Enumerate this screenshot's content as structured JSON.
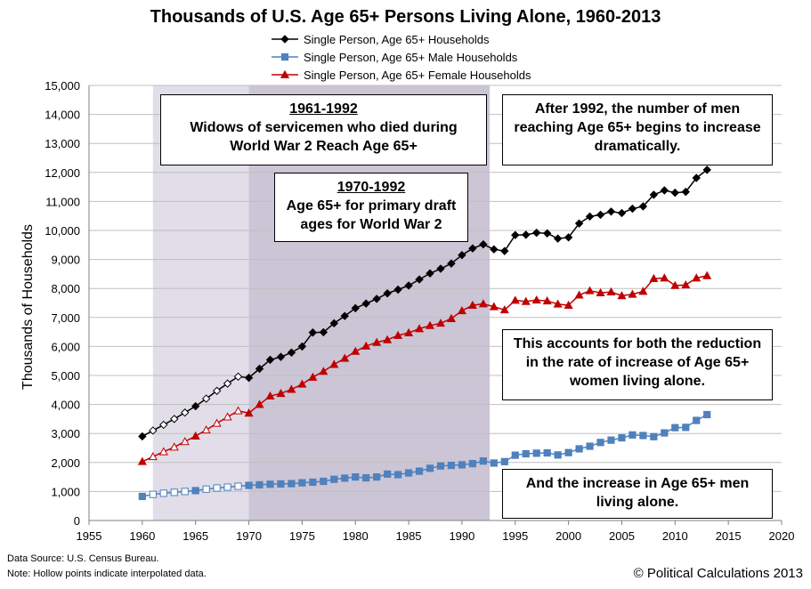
{
  "chart_data": {
    "type": "line",
    "title": "Thousands of U.S. Age 65+ Persons Living Alone, 1960-2013",
    "ylabel": "Thousands of Households",
    "xlabel": "",
    "xlim": [
      1955,
      2020
    ],
    "ylim": [
      0,
      15000
    ],
    "x_ticks": [
      "1955",
      "1960",
      "1965",
      "1970",
      "1975",
      "1980",
      "1985",
      "1990",
      "1995",
      "2000",
      "2005",
      "2010",
      "2015",
      "2020"
    ],
    "y_ticks": [
      "0",
      "1,000",
      "2,000",
      "3,000",
      "4,000",
      "5,000",
      "6,000",
      "7,000",
      "8,000",
      "9,000",
      "10,000",
      "11,000",
      "12,000",
      "13,000",
      "14,000",
      "15,000"
    ],
    "legend_position": "top-center",
    "x": [
      1960,
      1961,
      1962,
      1963,
      1964,
      1965,
      1966,
      1967,
      1968,
      1969,
      1970,
      1971,
      1972,
      1973,
      1974,
      1975,
      1976,
      1977,
      1978,
      1979,
      1980,
      1981,
      1982,
      1983,
      1984,
      1985,
      1986,
      1987,
      1988,
      1989,
      1990,
      1991,
      1992,
      1993,
      1994,
      1995,
      1996,
      1997,
      1998,
      1999,
      2000,
      2001,
      2002,
      2003,
      2004,
      2005,
      2006,
      2007,
      2008,
      2009,
      2010,
      2011,
      2012,
      2013
    ],
    "interpolated_years": [
      1961,
      1962,
      1963,
      1964,
      1966,
      1967,
      1968,
      1969
    ],
    "series": [
      {
        "name": "Single Person, Age 65+ Households",
        "color": "#000000",
        "marker": "diamond",
        "values": [
          2900,
          3100,
          3300,
          3500,
          3720,
          3940,
          4200,
          4470,
          4720,
          4960,
          4920,
          5230,
          5540,
          5640,
          5790,
          6000,
          6480,
          6490,
          6800,
          7050,
          7320,
          7480,
          7640,
          7830,
          7960,
          8100,
          8310,
          8520,
          8680,
          8860,
          9150,
          9380,
          9520,
          9350,
          9290,
          9840,
          9850,
          9920,
          9900,
          9720,
          9760,
          10240,
          10480,
          10540,
          10650,
          10600,
          10750,
          10830,
          11230,
          11380,
          11300,
          11330,
          11810,
          12090
        ]
      },
      {
        "name": "Single Person, Age 65+ Male Households",
        "color": "#4f81bd",
        "marker": "square",
        "values": [
          830,
          900,
          940,
          970,
          1000,
          1030,
          1080,
          1120,
          1150,
          1180,
          1210,
          1230,
          1250,
          1260,
          1270,
          1300,
          1320,
          1350,
          1420,
          1460,
          1500,
          1470,
          1500,
          1600,
          1580,
          1640,
          1700,
          1800,
          1880,
          1900,
          1920,
          1960,
          2050,
          1980,
          2030,
          2250,
          2300,
          2320,
          2330,
          2260,
          2340,
          2470,
          2560,
          2690,
          2770,
          2850,
          2950,
          2930,
          2890,
          3020,
          3200,
          3210,
          3450,
          3650
        ]
      },
      {
        "name": "Single Person, Age 65+ Female Households",
        "color": "#c00000",
        "marker": "triangle",
        "values": [
          2030,
          2200,
          2370,
          2530,
          2720,
          2910,
          3120,
          3350,
          3570,
          3780,
          3700,
          4000,
          4290,
          4380,
          4520,
          4700,
          4940,
          5140,
          5380,
          5590,
          5830,
          6010,
          6140,
          6230,
          6380,
          6470,
          6610,
          6720,
          6800,
          6960,
          7230,
          7420,
          7470,
          7370,
          7260,
          7590,
          7550,
          7600,
          7570,
          7460,
          7420,
          7770,
          7920,
          7850,
          7880,
          7750,
          7800,
          7900,
          8340,
          8360,
          8100,
          8120,
          8360,
          8440
        ]
      }
    ],
    "shaded_regions": [
      {
        "from": 1961,
        "to": 1992.6,
        "label": "1961-1992"
      },
      {
        "from": 1970,
        "to": 1992.6,
        "label": "1970-1992"
      }
    ],
    "annotations": [
      {
        "heading": "1961-1992",
        "lines": [
          "Widows of servicemen who died during",
          "World War 2 Reach Age 65+"
        ]
      },
      {
        "heading": "1970-1992",
        "lines": [
          "Age 65+ for primary draft",
          "ages for World War 2"
        ]
      },
      {
        "heading": "",
        "lines": [
          "After 1992, the number of men",
          "reaching Age 65+ begins to increase",
          "dramatically."
        ]
      },
      {
        "heading": "",
        "lines": [
          "This accounts for both the reduction",
          "in the rate of increase of Age 65+",
          "women living alone."
        ]
      },
      {
        "heading": "",
        "lines": [
          "And the increase in Age 65+ men",
          "living alone."
        ]
      }
    ]
  },
  "footer": {
    "source": "Data Source:  U.S. Census  Bureau.",
    "note": "Note: Hollow points indicate interpolated data.",
    "copyright": "© Political Calculations 2013"
  },
  "colors": {
    "shade_outer": "#e1dde9",
    "shade_inner": "#cbc5d5",
    "grid": "#c0c0c0"
  }
}
